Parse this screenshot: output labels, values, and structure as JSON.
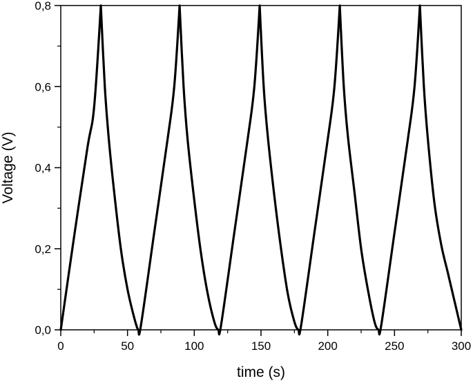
{
  "chart_data": {
    "type": "line",
    "title": "",
    "xlabel": "time (s)",
    "ylabel": "Voltage (V)",
    "xlim": [
      0,
      300
    ],
    "ylim": [
      0,
      0.8
    ],
    "x_ticks": [
      0,
      50,
      100,
      150,
      200,
      250,
      300
    ],
    "x_tick_labels": [
      "0",
      "50",
      "100",
      "150",
      "200",
      "250",
      "300"
    ],
    "y_ticks": [
      0,
      0.2,
      0.4,
      0.6,
      0.8
    ],
    "y_tick_labels": [
      "0,0",
      "0,2",
      "0,4",
      "0,6",
      "0,8"
    ],
    "grid": false,
    "legend": "none",
    "series": [
      {
        "color": "#000000",
        "x": [
          0,
          10,
          20,
          25,
          30,
          33,
          36,
          40,
          45,
          50,
          55,
          58,
          60,
          70,
          80,
          85,
          89,
          92,
          95,
          100,
          105,
          110,
          115,
          118,
          120,
          130,
          140,
          145,
          149,
          152,
          155,
          160,
          165,
          170,
          175,
          178,
          180,
          190,
          200,
          205,
          209,
          212,
          215,
          220,
          225,
          230,
          235,
          238,
          240,
          250,
          260,
          265,
          269,
          272,
          275,
          280,
          285,
          290,
          295,
          300
        ],
        "y": [
          0,
          0.23,
          0.45,
          0.55,
          0.8,
          0.6,
          0.47,
          0.34,
          0.2,
          0.1,
          0.03,
          0,
          0.01,
          0.24,
          0.47,
          0.6,
          0.8,
          0.6,
          0.47,
          0.32,
          0.19,
          0.09,
          0.02,
          0,
          0.01,
          0.24,
          0.47,
          0.6,
          0.8,
          0.6,
          0.48,
          0.33,
          0.2,
          0.09,
          0.02,
          0,
          0.01,
          0.24,
          0.47,
          0.6,
          0.8,
          0.6,
          0.48,
          0.34,
          0.2,
          0.1,
          0.02,
          0,
          0.01,
          0.24,
          0.47,
          0.6,
          0.8,
          0.6,
          0.47,
          0.31,
          0.21,
          0.14,
          0.07,
          0
        ]
      }
    ]
  }
}
